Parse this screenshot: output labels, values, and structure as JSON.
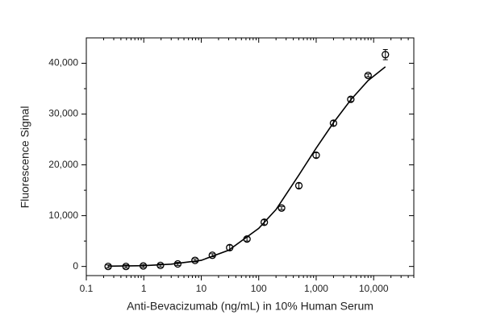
{
  "chart_data": {
    "type": "scatter",
    "x_label": "Anti-Bevacizumab (ng/mL) in 10% Human Serum",
    "y_label": "Fluorescence Signal",
    "x": [
      0.24,
      0.49,
      0.98,
      1.95,
      3.9,
      7.8,
      15.6,
      31.25,
      62.5,
      125,
      250,
      500,
      1000,
      2000,
      4000,
      8000,
      16000
    ],
    "values": [
      0,
      0,
      100,
      200,
      500,
      1200,
      2200,
      3700,
      5400,
      8700,
      11500,
      15900,
      21900,
      28200,
      32900,
      37600,
      41700
    ],
    "errors": [
      300,
      300,
      300,
      300,
      300,
      300,
      300,
      500,
      400,
      500,
      300,
      500,
      500,
      500,
      400,
      300,
      1000
    ],
    "fit": {
      "x": [
        0.24,
        1,
        3,
        10,
        30,
        100,
        200,
        500,
        1000,
        2000,
        4000,
        8000,
        16000
      ],
      "y": [
        50,
        150,
        450,
        1200,
        3200,
        7500,
        11200,
        18000,
        23300,
        28300,
        32800,
        36600,
        39300
      ]
    },
    "color": "#000000",
    "log_x": true,
    "xlim": [
      0.1,
      50000
    ],
    "ylim": [
      -1800,
      45000
    ],
    "xticks": [
      0.1,
      1,
      10,
      100,
      {
        "value": 1000,
        "label": "1,000"
      },
      {
        "value": 10000,
        "label": "10,000"
      }
    ],
    "yticks": [
      0,
      {
        "value": 10000,
        "label": "10,000"
      },
      {
        "value": 20000,
        "label": "20,000"
      },
      {
        "value": 30000,
        "label": "30,000"
      },
      {
        "value": 40000,
        "label": "40,000"
      }
    ]
  }
}
